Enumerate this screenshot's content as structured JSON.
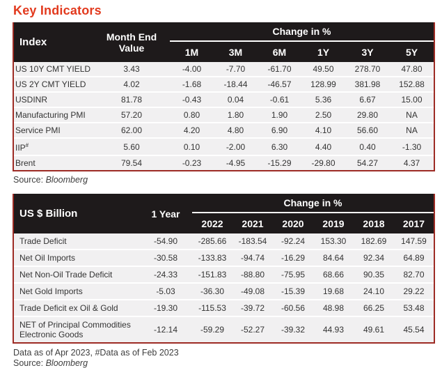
{
  "page": {
    "title": "Key Indicators",
    "accent_color": "#e23a1e",
    "header_bg": "#1e1a1b",
    "border_color": "#9d2b24",
    "row_bg": "#f1f0f1"
  },
  "table1": {
    "col1_header": "Index",
    "col2_header": "Month End Value",
    "group_header": "Change in %",
    "periods": [
      "1M",
      "3M",
      "6M",
      "1Y",
      "3Y",
      "5Y"
    ],
    "rows": [
      {
        "label": "US 10Y CMT YIELD",
        "value": "3.43",
        "changes": [
          "-4.00",
          "-7.70",
          "-61.70",
          "49.50",
          "278.70",
          "47.80"
        ]
      },
      {
        "label": "US 2Y CMT YIELD",
        "value": "4.02",
        "changes": [
          "-1.68",
          "-18.44",
          "-46.57",
          "128.99",
          "381.98",
          "152.88"
        ]
      },
      {
        "label": "USDINR",
        "value": "81.78",
        "changes": [
          "-0.43",
          "0.04",
          "-0.61",
          "5.36",
          "6.67",
          "15.00"
        ]
      },
      {
        "label": "Manufacturing PMI",
        "value": "57.20",
        "changes": [
          "0.80",
          "1.80",
          "1.90",
          "2.50",
          "29.80",
          "NA"
        ]
      },
      {
        "label": "Service PMI",
        "value": "62.00",
        "changes": [
          "4.20",
          "4.80",
          "6.90",
          "4.10",
          "56.60",
          "NA"
        ]
      },
      {
        "label": "IIP",
        "label_sup": "#",
        "value": "5.60",
        "changes": [
          "0.10",
          "-2.00",
          "6.30",
          "4.40",
          "0.40",
          "-1.30"
        ]
      },
      {
        "label": "Brent",
        "value": "79.54",
        "changes": [
          "-0.23",
          "-4.95",
          "-15.29",
          "-29.80",
          "54.27",
          "4.37"
        ]
      }
    ],
    "source_label": "Source:",
    "source_value": "Bloomberg"
  },
  "table2": {
    "col1_header": "US $ Billion",
    "col2_header": "1 Year",
    "group_header": "Change in %",
    "years": [
      "2022",
      "2021",
      "2020",
      "2019",
      "2018",
      "2017"
    ],
    "rows": [
      {
        "label": "Trade Deficit",
        "value": "-54.90",
        "changes": [
          "-285.66",
          "-183.54",
          "-92.24",
          "153.30",
          "182.69",
          "147.59"
        ]
      },
      {
        "label": "Net Oil Imports",
        "value": "-30.58",
        "changes": [
          "-133.83",
          "-94.74",
          "-16.29",
          "84.64",
          "92.34",
          "64.89"
        ]
      },
      {
        "label": "Net Non-Oil Trade Deficit",
        "value": "-24.33",
        "changes": [
          "-151.83",
          "-88.80",
          "-75.95",
          "68.66",
          "90.35",
          "82.70"
        ]
      },
      {
        "label": "Net Gold Imports",
        "value": "-5.03",
        "changes": [
          "-36.30",
          "-49.08",
          "-15.39",
          "19.68",
          "24.10",
          "29.22"
        ]
      },
      {
        "label": "Trade Deficit ex Oil & Gold",
        "value": "-19.30",
        "changes": [
          "-115.53",
          "-39.72",
          "-60.56",
          "48.98",
          "66.25",
          "53.48"
        ]
      },
      {
        "label": "NET of Principal Commodities Electronic Goods",
        "value": "-12.14",
        "changes": [
          "-59.29",
          "-52.27",
          "-39.32",
          "44.93",
          "49.61",
          "45.54"
        ]
      }
    ],
    "footnote": "Data as of Apr 2023, #Data as of Feb 2023",
    "source_label": "Source:",
    "source_value": "Bloomberg"
  }
}
